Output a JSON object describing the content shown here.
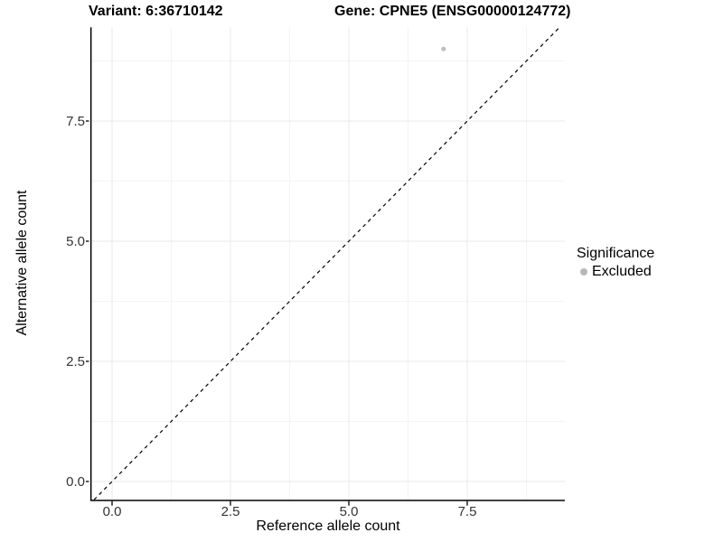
{
  "chart_data": {
    "type": "scatter",
    "title_left": "Variant: 6:36710142",
    "title_right": "Gene: CPNE5 (ENSG00000124772)",
    "xlabel": "Reference allele count",
    "ylabel": "Alternative allele count",
    "x_ticks": [
      0.0,
      2.5,
      5.0,
      7.5
    ],
    "y_ticks": [
      0.0,
      2.5,
      5.0,
      7.5
    ],
    "x_tick_labels": [
      "0.0",
      "2.5",
      "5.0",
      "7.5"
    ],
    "y_tick_labels": [
      "0.0",
      "2.5",
      "5.0",
      "7.5"
    ],
    "minor_ticks": [
      1.25,
      3.75,
      6.25,
      8.75
    ],
    "xlim": [
      -0.46,
      9.56
    ],
    "ylim": [
      -0.38,
      9.45
    ],
    "grid": true,
    "points": [
      {
        "x": 7,
        "y": 9,
        "series": "Excluded"
      }
    ],
    "reference_line": {
      "type": "identity",
      "intercept": 0,
      "slope": 1,
      "style": "dashed",
      "color": "#000000"
    },
    "legend": {
      "title": "Significance",
      "position": "right",
      "items": [
        {
          "label": "Excluded",
          "color": "#b8b8b8"
        }
      ]
    },
    "colors": {
      "point": "#bfbfbf",
      "grid_major": "#e8e8e8",
      "grid_minor": "#f4f4f4",
      "axis": "#000000",
      "tick_text": "#333333",
      "background": "#ffffff"
    }
  }
}
